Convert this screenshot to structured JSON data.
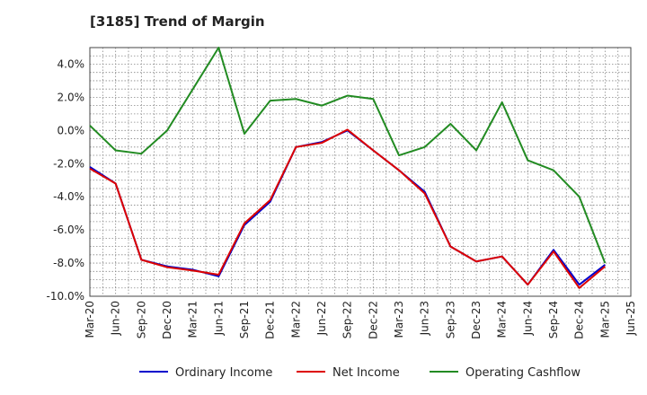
{
  "chart_data": {
    "type": "line",
    "title": "[3185]  Trend of Margin",
    "xlabel": "",
    "ylabel": "",
    "categories": [
      "Mar-20",
      "Jun-20",
      "Sep-20",
      "Dec-20",
      "Mar-21",
      "Jun-21",
      "Sep-21",
      "Dec-21",
      "Mar-22",
      "Jun-22",
      "Sep-22",
      "Dec-22",
      "Mar-23",
      "Jun-23",
      "Sep-23",
      "Dec-23",
      "Mar-24",
      "Jun-24",
      "Sep-24",
      "Dec-24",
      "Mar-25",
      "Jun-25"
    ],
    "ylim": [
      -10,
      5
    ],
    "yticks": [
      -10,
      -8,
      -6,
      -4,
      -2,
      0,
      2,
      4
    ],
    "ytick_labels": [
      "-10.0%",
      "-8.0%",
      "-6.0%",
      "-4.0%",
      "-2.0%",
      "0.0%",
      "2.0%",
      "4.0%"
    ],
    "grid": true,
    "legend_position": "bottom",
    "series": [
      {
        "name": "Ordinary Income",
        "color": "#0000cc",
        "values": [
          -2.2,
          -3.2,
          -7.8,
          -8.2,
          -8.4,
          -8.8,
          -5.7,
          -4.3,
          -1.0,
          -0.7,
          0.0,
          -1.2,
          -2.4,
          -3.7,
          -7.0,
          -7.9,
          -7.6,
          -9.3,
          -7.2,
          -9.3,
          -8.1,
          null
        ]
      },
      {
        "name": "Net Income",
        "color": "#dd0000",
        "values": [
          -2.3,
          -3.2,
          -7.8,
          -8.25,
          -8.45,
          -8.7,
          -5.6,
          -4.2,
          -1.0,
          -0.75,
          0.05,
          -1.2,
          -2.4,
          -3.8,
          -7.0,
          -7.9,
          -7.6,
          -9.3,
          -7.3,
          -9.5,
          -8.2,
          null
        ]
      },
      {
        "name": "Operating Cashflow",
        "color": "#228b22",
        "values": [
          0.3,
          -1.2,
          -1.4,
          0.0,
          2.5,
          5.0,
          -0.2,
          1.8,
          1.9,
          1.5,
          2.1,
          1.9,
          -1.5,
          -1.0,
          0.4,
          -1.2,
          1.7,
          -1.8,
          -2.4,
          -4.0,
          -8.0,
          null
        ]
      }
    ]
  }
}
